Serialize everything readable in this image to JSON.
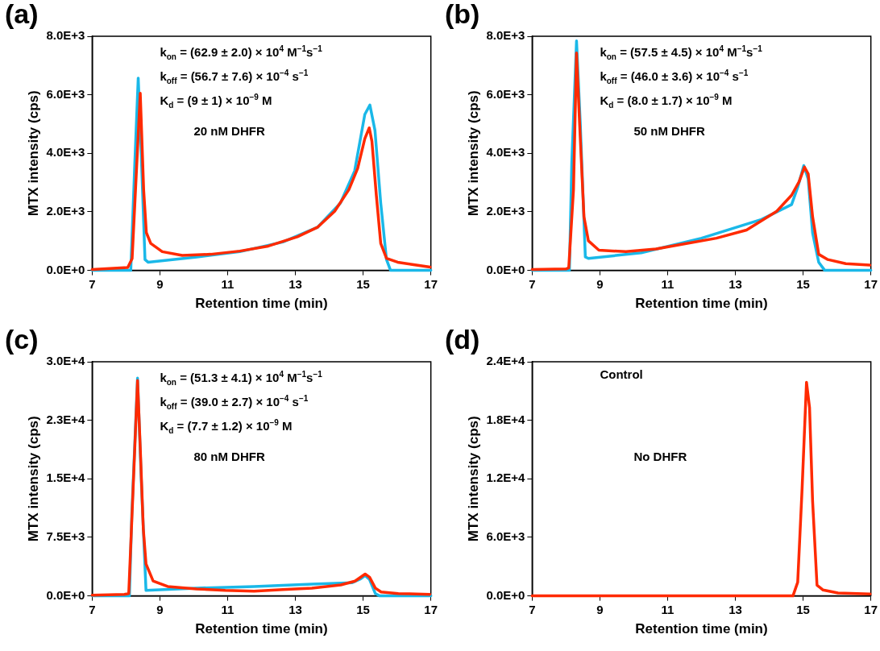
{
  "chart_data": [
    {
      "type": "line",
      "title": "(a)",
      "xlabel": "Retention time (min)",
      "ylabel": "MTX intensity (cps)",
      "xlim": [
        7,
        17
      ],
      "xticks": [
        7,
        9,
        11,
        13,
        15,
        17
      ],
      "ylim": [
        0,
        8000
      ],
      "yticks": [
        {
          "value": 0,
          "label": "0.0E+0"
        },
        {
          "value": 2000,
          "label": "2.0E+3"
        },
        {
          "value": 4000,
          "label": "4.0E+3"
        },
        {
          "value": 6000,
          "label": "6.0E+3"
        },
        {
          "value": 8000,
          "label": "8.0E+3"
        }
      ],
      "grid": false,
      "legend": false,
      "marker": "none",
      "annotations": [
        "k$_{on}$ = (62.9 ± 2.0) × 10$^{4}$ M$^{−1}$s$^{−1}$",
        "k$_{off}$ = (56.7 ± 7.6) × 10$^{−4}$ s$^{−1}$",
        "K$_{d}$ = (9 ± 1) × 10$^{−9}$ M",
        "20 nM DHFR"
      ],
      "series": [
        {
          "color": "#ff2a00",
          "x": [
            7,
            8.05,
            8.18,
            8.42,
            8.52,
            8.6,
            8.73,
            9.07,
            9.66,
            10.5,
            11.36,
            12.2,
            13.06,
            13.65,
            14.16,
            14.58,
            14.84,
            15.05,
            15.18,
            15.26,
            15.39,
            15.52,
            15.69,
            16.02,
            16.45,
            16.98
          ],
          "values": [
            30,
            100,
            400,
            6050,
            2760,
            1290,
            920,
            640,
            510,
            550,
            660,
            830,
            1150,
            1470,
            2020,
            2760,
            3490,
            4500,
            4870,
            4410,
            2570,
            920,
            410,
            280,
            200,
            110
          ]
        },
        {
          "color": "#1ab8e8",
          "x": [
            7,
            8.14,
            8.26,
            8.36,
            8.43,
            8.56,
            8.65,
            10.09,
            11.36,
            12.63,
            13.65,
            14.33,
            14.75,
            15.05,
            15.2,
            15.35,
            15.52,
            15.69,
            15.81,
            17
          ],
          "values": [
            0,
            0,
            3680,
            6570,
            4600,
            370,
            280,
            460,
            640,
            970,
            1470,
            2300,
            3400,
            5330,
            5650,
            4780,
            2300,
            370,
            0,
            0
          ]
        }
      ]
    },
    {
      "type": "line",
      "title": "(b)",
      "xlabel": "Retention time (min)",
      "ylabel": "MTX intensity (cps)",
      "xlim": [
        7,
        17
      ],
      "xticks": [
        7,
        9,
        11,
        13,
        15,
        17
      ],
      "ylim": [
        0,
        8000
      ],
      "yticks": [
        {
          "value": 0,
          "label": "0.0E+0"
        },
        {
          "value": 2000,
          "label": "2.0E+3"
        },
        {
          "value": 4000,
          "label": "4.0E+3"
        },
        {
          "value": 6000,
          "label": "6.0E+3"
        },
        {
          "value": 8000,
          "label": "8.0E+3"
        }
      ],
      "grid": false,
      "legend": false,
      "marker": "none",
      "annotations": [
        "k$_{on}$ = (57.5 ± 4.5) × 10$^{4}$ M$^{−1}$s$^{−1}$",
        "k$_{off}$ = (46.0 ± 3.6) × 10$^{−4}$ s$^{−1}$",
        "K$_{d}$ = (8.0 ± 1.7) × 10$^{−9}$ M",
        "50 nM DHFR"
      ],
      "series": [
        {
          "color": "#ff2a00",
          "x": [
            7,
            8.0,
            8.08,
            8.22,
            8.31,
            8.4,
            8.53,
            8.66,
            8.97,
            9.77,
            10.66,
            11.55,
            12.44,
            13.33,
            14.22,
            14.66,
            14.88,
            15.04,
            15.15,
            15.28,
            15.46,
            15.73,
            16.26,
            16.97
          ],
          "values": [
            30,
            50,
            90,
            2750,
            7430,
            5040,
            1830,
            1010,
            690,
            640,
            730,
            920,
            1100,
            1380,
            2020,
            2570,
            3030,
            3530,
            3300,
            1830,
            550,
            370,
            230,
            180
          ]
        },
        {
          "color": "#1ab8e8",
          "x": [
            7,
            8.1,
            8.17,
            8.31,
            8.42,
            8.57,
            8.66,
            10.22,
            12.0,
            13.77,
            14.66,
            14.84,
            15.02,
            15.15,
            15.28,
            15.46,
            15.64,
            17
          ],
          "values": [
            0,
            0,
            3670,
            7840,
            5040,
            460,
            410,
            600,
            1100,
            1740,
            2250,
            2840,
            3580,
            3120,
            1280,
            280,
            0,
            0
          ]
        }
      ]
    },
    {
      "type": "line",
      "title": "(c)",
      "xlabel": "Retention time (min)",
      "ylabel": "MTX intensity (cps)",
      "xlim": [
        7,
        17
      ],
      "xticks": [
        7,
        9,
        11,
        13,
        15,
        17
      ],
      "ylim": [
        0,
        30000
      ],
      "yticks": [
        {
          "value": 0,
          "label": "0.0E+0"
        },
        {
          "value": 7500,
          "label": "7.5E+3"
        },
        {
          "value": 15000,
          "label": "1.5E+4"
        },
        {
          "value": 22500,
          "label": "2.3E+4"
        },
        {
          "value": 30000,
          "label": "3.0E+4"
        }
      ],
      "grid": false,
      "legend": false,
      "marker": "none",
      "annotations": [
        "k$_{on}$ = (51.3 ± 4.1) × 10$^{4}$ M$^{−1}$s$^{−1}$",
        "k$_{off}$ = (39.0 ± 2.7) × 10$^{−4}$ s$^{−1}$",
        "K$_{d}$ = (7.7 ± 1.2) × 10$^{−9}$ M",
        "80 nM DHFR"
      ],
      "series": [
        {
          "color": "#ff2a00",
          "x": [
            7,
            7.95,
            8.08,
            8.21,
            8.34,
            8.42,
            8.51,
            8.59,
            8.8,
            9.23,
            10.08,
            10.93,
            11.78,
            12.63,
            13.49,
            14.34,
            14.76,
            15.06,
            15.19,
            15.36,
            15.53,
            16.04,
            16.97
          ],
          "values": [
            100,
            200,
            300,
            13800,
            27600,
            19000,
            8600,
            4100,
            1900,
            1200,
            900,
            700,
            600,
            800,
            1000,
            1400,
            1900,
            2800,
            2400,
            1000,
            500,
            300,
            200
          ]
        },
        {
          "color": "#1ab8e8",
          "x": [
            7,
            8.1,
            8.17,
            8.34,
            8.46,
            8.59,
            10.08,
            11.78,
            13.49,
            14.68,
            14.93,
            15.06,
            15.19,
            15.36,
            15.49,
            17
          ],
          "values": [
            0,
            0,
            10300,
            27900,
            13800,
            700,
            1000,
            1200,
            1500,
            1700,
            2200,
            2600,
            2100,
            300,
            0,
            0
          ]
        }
      ]
    },
    {
      "type": "line",
      "title": "(d)",
      "xlabel": "Retention time (min)",
      "ylabel": "MTX intensity (cps)",
      "xlim": [
        7,
        17
      ],
      "xticks": [
        7,
        9,
        11,
        13,
        15,
        17
      ],
      "ylim": [
        0,
        24000
      ],
      "yticks": [
        {
          "value": 0,
          "label": "0.0E+0"
        },
        {
          "value": 6000,
          "label": "6.0E+3"
        },
        {
          "value": 12000,
          "label": "1.2E+4"
        },
        {
          "value": 18000,
          "label": "1.8E+4"
        },
        {
          "value": 24000,
          "label": "2.4E+4"
        }
      ],
      "grid": false,
      "legend": false,
      "marker": "none",
      "annotations": [
        "Control",
        "No DHFR"
      ],
      "series": [
        {
          "color": "#ff2a00",
          "x": [
            7,
            14.7,
            14.84,
            14.97,
            15.1,
            15.19,
            15.28,
            15.41,
            15.59,
            16.03,
            16.98
          ],
          "values": [
            0,
            0,
            1400,
            11000,
            21900,
            19300,
            9700,
            1100,
            600,
            300,
            200
          ]
        }
      ]
    }
  ]
}
